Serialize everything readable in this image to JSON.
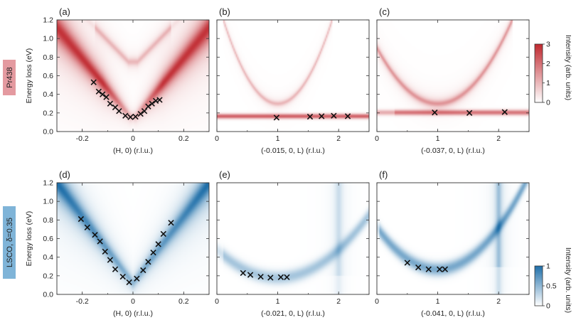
{
  "rows": [
    {
      "label": "Pr438",
      "label_bg": "#e49aa0",
      "colormap_max": "#c0282f",
      "colorbar": {
        "title": "Intensity (arb. units)",
        "ticks": [
          "3",
          "2",
          "1",
          "0"
        ],
        "range": [
          0,
          3
        ]
      }
    },
    {
      "label": "LSCO, δ=0.35",
      "label_bg": "#7fb4d8",
      "colormap_max": "#1f6fa9",
      "colorbar": {
        "title": "Intensity (arb. units)",
        "ticks": [
          "1",
          "0.5",
          "0"
        ],
        "range": [
          0,
          1
        ]
      }
    }
  ],
  "y_axis": {
    "label": "Energy loss (eV)",
    "ticks": [
      "0.0",
      "0.2",
      "0.4",
      "0.6",
      "0.8",
      "1.0",
      "1.2"
    ]
  },
  "chart_data": [
    {
      "panel": "(a)",
      "type": "heatmap",
      "row": 0,
      "xlabel": "(H, 0) (r.l.u.)",
      "xlim": [
        -0.3,
        0.3
      ],
      "ylim": [
        0,
        1.2
      ],
      "xticks": [
        "-0.2",
        "0",
        "0.2"
      ],
      "xtick_values": [
        -0.2,
        0,
        0.2
      ],
      "points": [
        [
          -0.155,
          0.53
        ],
        [
          -0.135,
          0.43
        ],
        [
          -0.12,
          0.4
        ],
        [
          -0.105,
          0.37
        ],
        [
          -0.09,
          0.3
        ],
        [
          -0.07,
          0.26
        ],
        [
          -0.055,
          0.22
        ],
        [
          -0.03,
          0.17
        ],
        [
          -0.01,
          0.155
        ],
        [
          0.01,
          0.16
        ],
        [
          0.03,
          0.19
        ],
        [
          0.045,
          0.22
        ],
        [
          0.06,
          0.27
        ],
        [
          0.075,
          0.3
        ],
        [
          0.09,
          0.33
        ],
        [
          0.105,
          0.34
        ]
      ]
    },
    {
      "panel": "(b)",
      "type": "heatmap",
      "row": 0,
      "xlabel": "(-0.015, 0, L) (r.l.u.)",
      "xlim": [
        0,
        2.5
      ],
      "ylim": [
        0,
        1.2
      ],
      "xticks": [
        "0",
        "1",
        "2"
      ],
      "xtick_values": [
        0,
        1,
        2
      ],
      "points": [
        [
          0.98,
          0.15
        ],
        [
          1.53,
          0.16
        ],
        [
          1.72,
          0.165
        ],
        [
          1.92,
          0.17
        ],
        [
          2.15,
          0.165
        ]
      ]
    },
    {
      "panel": "(c)",
      "type": "heatmap",
      "row": 0,
      "xlabel": "(-0.037, 0, L) (r.l.u.)",
      "xlim": [
        0,
        2.5
      ],
      "ylim": [
        0,
        1.2
      ],
      "xticks": [
        "0",
        "1",
        "2"
      ],
      "xtick_values": [
        0,
        1,
        2
      ],
      "points": [
        [
          0.95,
          0.205
        ],
        [
          1.52,
          0.2
        ],
        [
          2.1,
          0.21
        ]
      ]
    },
    {
      "panel": "(d)",
      "type": "heatmap",
      "row": 1,
      "xlabel": "(H, 0) (r.l.u.)",
      "xlim": [
        -0.3,
        0.3
      ],
      "ylim": [
        0,
        1.2
      ],
      "xticks": [
        "-0.2",
        "0",
        "0.2"
      ],
      "xtick_values": [
        -0.2,
        0,
        0.2
      ],
      "points": [
        [
          -0.205,
          0.81
        ],
        [
          -0.18,
          0.72
        ],
        [
          -0.15,
          0.64
        ],
        [
          -0.13,
          0.57
        ],
        [
          -0.11,
          0.46
        ],
        [
          -0.09,
          0.37
        ],
        [
          -0.07,
          0.27
        ],
        [
          -0.04,
          0.19
        ],
        [
          -0.015,
          0.13
        ],
        [
          0.015,
          0.17
        ],
        [
          0.04,
          0.26
        ],
        [
          0.06,
          0.35
        ],
        [
          0.08,
          0.45
        ],
        [
          0.1,
          0.54
        ],
        [
          0.12,
          0.65
        ],
        [
          0.15,
          0.77
        ]
      ]
    },
    {
      "panel": "(e)",
      "type": "heatmap",
      "row": 1,
      "xlabel": "(-0.021, 0, L) (r.l.u.)",
      "xlim": [
        0,
        2.5
      ],
      "ylim": [
        0,
        1.2
      ],
      "xticks": [
        "0",
        "1",
        "2"
      ],
      "xtick_values": [
        0,
        1,
        2
      ],
      "points": [
        [
          0.43,
          0.23
        ],
        [
          0.55,
          0.21
        ],
        [
          0.72,
          0.19
        ],
        [
          0.88,
          0.18
        ],
        [
          1.05,
          0.185
        ],
        [
          1.15,
          0.185
        ]
      ]
    },
    {
      "panel": "(f)",
      "type": "heatmap",
      "row": 1,
      "xlabel": "(-0.041, 0, L) (r.l.u.)",
      "xlim": [
        0,
        2.5
      ],
      "ylim": [
        0,
        1.2
      ],
      "xticks": [
        "0",
        "1",
        "2"
      ],
      "xtick_values": [
        0,
        1,
        2
      ],
      "points": [
        [
          0.5,
          0.34
        ],
        [
          0.68,
          0.29
        ],
        [
          0.85,
          0.27
        ],
        [
          1.03,
          0.27
        ],
        [
          1.12,
          0.27
        ]
      ]
    }
  ]
}
